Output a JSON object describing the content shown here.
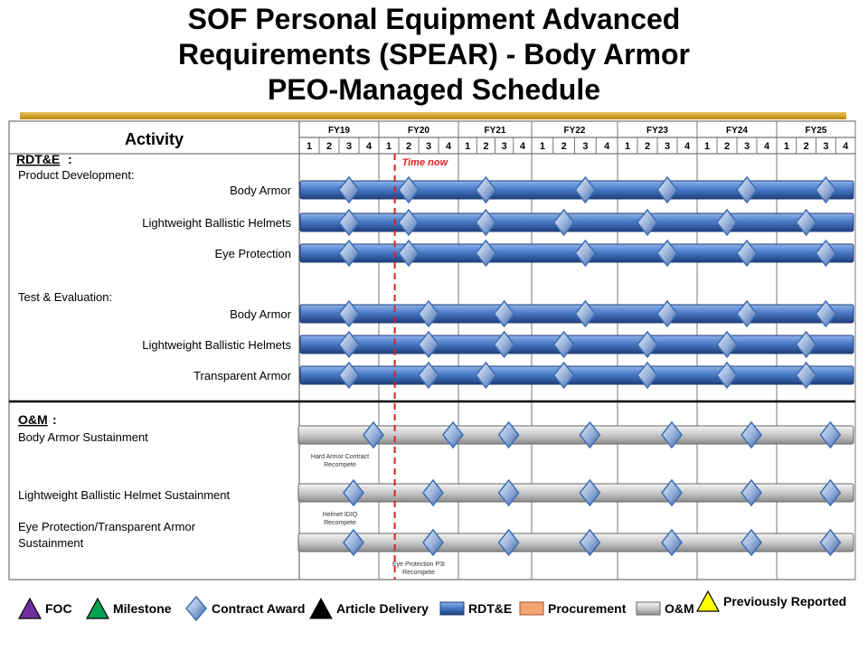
{
  "title": {
    "line1": "SOF Personal Equipment Advanced",
    "line2": "Requirements  (SPEAR) - Body Armor",
    "line3": "PEO-Managed Schedule"
  },
  "header": {
    "activity_label": "Activity",
    "fiscal_years": [
      "FY19",
      "FY20",
      "FY21",
      "FY22",
      "FY23",
      "FY24",
      "FY25"
    ],
    "quarters": [
      "1",
      "2",
      "3",
      "4"
    ]
  },
  "time_now": {
    "label": "Time now",
    "fy": "FY20",
    "quarter": 1.3
  },
  "sections": {
    "rdte": "RDT&E",
    "rdte_suffix": ":",
    "om": "O&M",
    "om_suffix": ":",
    "product_development": "Product Development:",
    "test_evaluation": "Test & Evaluation:"
  },
  "rows": [
    {
      "label": "Body Armor",
      "bar": "RDT&E",
      "milestones": [
        "FY19 Q3",
        "FY20 Q2",
        "FY21 Q2",
        "FY22 Q3",
        "FY23 Q3",
        "FY24 Q3",
        "FY25 Q3"
      ]
    },
    {
      "label": "Lightweight Ballistic Helmets",
      "bar": "RDT&E",
      "milestones": [
        "FY19 Q3",
        "FY20 Q2",
        "FY21 Q2",
        "FY22 Q2",
        "FY23 Q2",
        "FY24 Q2",
        "FY25 Q2"
      ]
    },
    {
      "label": "Eye Protection",
      "bar": "RDT&E",
      "milestones": [
        "FY19 Q3",
        "FY20 Q2",
        "FY21 Q2",
        "FY22 Q3",
        "FY23 Q3",
        "FY24 Q3",
        "FY25 Q3"
      ]
    },
    {
      "label": "Body Armor",
      "bar": "RDT&E",
      "milestones": [
        "FY19 Q3",
        "FY20 Q3",
        "FY21 Q3",
        "FY22 Q3",
        "FY23 Q3",
        "FY24 Q3",
        "FY25 Q3"
      ]
    },
    {
      "label": "Lightweight Ballistic Helmets",
      "bar": "RDT&E",
      "milestones": [
        "FY19 Q3",
        "FY20 Q3",
        "FY21 Q3",
        "FY22 Q2",
        "FY23 Q2",
        "FY24 Q2",
        "FY25 Q2"
      ]
    },
    {
      "label": "Transparent Armor",
      "bar": "RDT&E",
      "milestones": [
        "FY19 Q3",
        "FY20 Q3",
        "FY21 Q2",
        "FY22 Q2",
        "FY23 Q2",
        "FY24 Q2",
        "FY25 Q2"
      ]
    },
    {
      "label": "Body Armor Sustainment",
      "bar": "O&M",
      "milestones": [
        "FY19 Q4",
        "FY20 Q4",
        "FY21 Q3",
        "FY22 Q3",
        "FY23 Q3",
        "FY24 Q3",
        "FY25 Q3"
      ]
    },
    {
      "label": "Lightweight Ballistic Helmet Sustainment",
      "bar": "O&M",
      "milestones": [
        "FY19 Q3",
        "FY20 Q3",
        "FY21 Q3",
        "FY22 Q3",
        "FY23 Q3",
        "FY24 Q3",
        "FY25 Q3"
      ]
    },
    {
      "label": "Eye Protection/Transparent Armor Sustainment",
      "bar": "O&M",
      "milestones": [
        "FY19 Q3",
        "FY20 Q3",
        "FY21 Q3",
        "FY22 Q3",
        "FY23 Q3",
        "FY24 Q3",
        "FY25 Q3"
      ]
    }
  ],
  "notes": [
    {
      "text": [
        "Hard Armor Contract",
        "Recompete"
      ],
      "under_row": 6
    },
    {
      "text": [
        "Helmet IDIQ",
        "Recompete"
      ],
      "under_row": 7
    },
    {
      "text": [
        "Eye Protection P3I",
        "Recompete"
      ],
      "under_row": 8
    }
  ],
  "legend": [
    {
      "label": "FOC",
      "icon": "triangle-icon",
      "color": "#7030a0"
    },
    {
      "label": "Milestone",
      "icon": "triangle-icon",
      "color": "#00a050"
    },
    {
      "label": "Contract Award",
      "icon": "diamond-icon",
      "color": "#3d6fb5"
    },
    {
      "label": "Article Delivery",
      "icon": "triangle-icon",
      "color": "#000000"
    },
    {
      "label": "RDT&E",
      "icon": "bar-swatch-icon",
      "color": "#4472c4"
    },
    {
      "label": "Procurement",
      "icon": "bar-swatch-icon",
      "color": "#f4a574"
    },
    {
      "label": "O&M",
      "icon": "bar-swatch-icon",
      "color": "#c8c8c8"
    },
    {
      "label": "Previously Reported",
      "icon": "triangle-icon",
      "color": "#ffff00"
    }
  ],
  "colors": {
    "rdte_bar": "#4a7bc8",
    "om_bar": "#cfcfcf",
    "time_now": "#e02020",
    "diamond": "#5b86c9",
    "title_rule": "#d4a017"
  }
}
